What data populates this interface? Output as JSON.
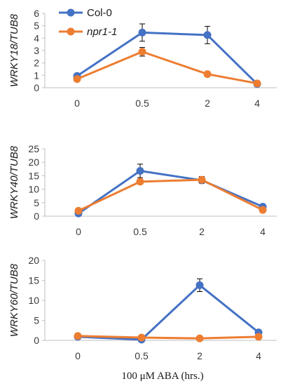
{
  "colors": {
    "col0": "#4472C4",
    "npr1": "#ED7D31",
    "axis": "#bfbfbf",
    "errorbar": "#000000"
  },
  "legend": [
    {
      "label": "Col-0",
      "color": "#4472C4",
      "italic": false
    },
    {
      "label": "npr1-1",
      "color": "#ED7D31",
      "italic": true
    }
  ],
  "xlabel": "100 μM ABA (hrs.)",
  "chart_data": [
    {
      "type": "line",
      "ylabel": "WRKY18/TUB8",
      "categories": [
        "0",
        "0.5",
        "2",
        "4"
      ],
      "ylim": [
        0,
        6
      ],
      "yticks": [
        0,
        1,
        2,
        3,
        4,
        5,
        6
      ],
      "series": [
        {
          "name": "Col-0",
          "values": [
            0.95,
            4.45,
            4.25,
            0.3
          ],
          "errors": [
            0.1,
            0.7,
            0.7,
            0.05
          ]
        },
        {
          "name": "npr1-1",
          "values": [
            0.7,
            2.9,
            1.1,
            0.35
          ],
          "errors": [
            0.1,
            0.35,
            0.1,
            0.05
          ]
        }
      ]
    },
    {
      "type": "line",
      "ylabel": "WRKY40/TUB8",
      "categories": [
        "0",
        "0.5",
        "2",
        "4"
      ],
      "ylim": [
        0,
        25
      ],
      "yticks": [
        0,
        5,
        10,
        15,
        20,
        25
      ],
      "series": [
        {
          "name": "Col-0",
          "values": [
            1.0,
            16.8,
            13.3,
            3.5
          ],
          "errors": [
            0.3,
            2.5,
            1.0,
            0.3
          ]
        },
        {
          "name": "npr1-1",
          "values": [
            2.0,
            12.8,
            13.5,
            2.3
          ],
          "errors": [
            0.3,
            0.8,
            1.2,
            0.3
          ]
        }
      ]
    },
    {
      "type": "line",
      "ylabel": "WRKY60/TUB8",
      "categories": [
        "0",
        "0.5",
        "2",
        "4"
      ],
      "ylim": [
        0,
        20
      ],
      "yticks": [
        0,
        5,
        10,
        15,
        20
      ],
      "series": [
        {
          "name": "Col-0",
          "values": [
            0.9,
            0.2,
            13.8,
            2.0
          ],
          "errors": [
            0.2,
            0.1,
            1.6,
            0.3
          ]
        },
        {
          "name": "npr1-1",
          "values": [
            1.1,
            0.7,
            0.5,
            0.9
          ],
          "errors": [
            0.2,
            0.1,
            0.1,
            0.2
          ]
        }
      ]
    }
  ]
}
